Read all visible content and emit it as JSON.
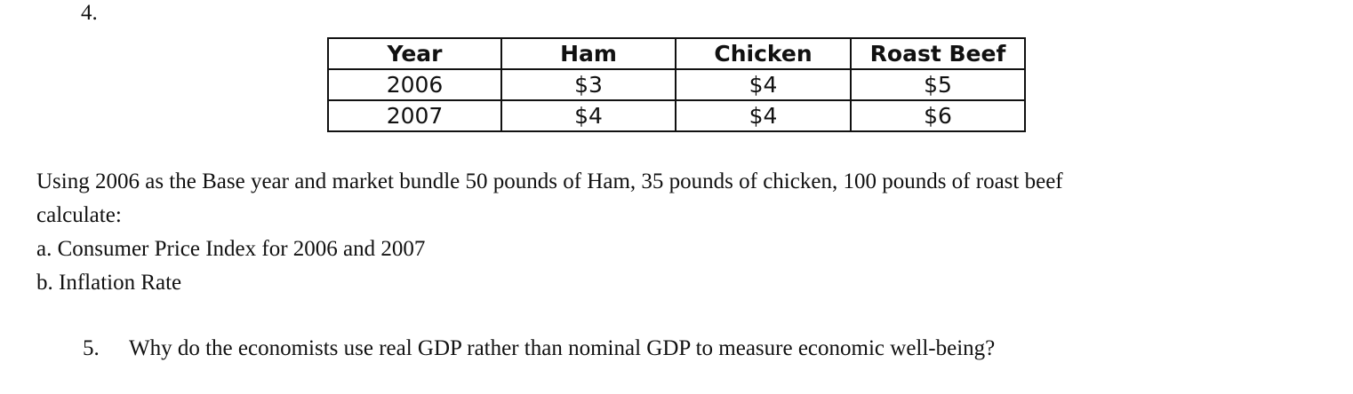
{
  "question4": {
    "number": "4.",
    "table": {
      "headers": [
        "Year",
        "Ham",
        "Chicken",
        "Roast Beef"
      ],
      "rows": [
        [
          "2006",
          "$3",
          "$4",
          "$5"
        ],
        [
          "2007",
          "$4",
          "$4",
          "$6"
        ]
      ]
    },
    "intro_line1": "Using 2006 as the Base year and market bundle 50 pounds of Ham, 35 pounds of chicken, 100 pounds of roast beef",
    "intro_line2": "calculate:",
    "part_a": "a. Consumer Price Index for 2006 and 2007",
    "part_b": "b. Inflation Rate"
  },
  "question5": {
    "number": "5.",
    "text": "Why do the economists use real GDP rather than nominal GDP to measure economic well-being?"
  }
}
